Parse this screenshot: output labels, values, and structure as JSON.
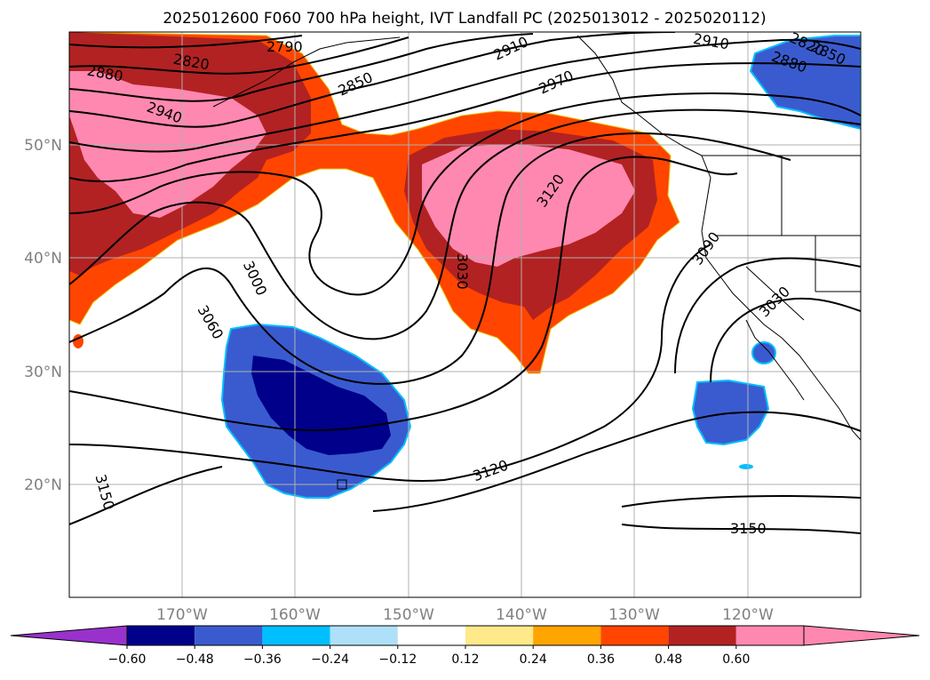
{
  "title": "2025012600 F060 700 hPa height, IVT Landfall PC (2025013012 - 2025020112)",
  "map": {
    "lon_range": [
      -180,
      -110
    ],
    "lat_range": [
      10,
      60
    ],
    "gridlines": true,
    "lon_labels": [
      "170°W",
      "160°W",
      "150°W",
      "140°W",
      "130°W",
      "120°W"
    ],
    "lat_labels": [
      "50°N",
      "40°N",
      "30°N",
      "20°N"
    ],
    "contour_labels": [
      "2790",
      "2820",
      "2880",
      "2940",
      "2850",
      "2910",
      "2970",
      "2910",
      "2880",
      "2850",
      "2820",
      "3000",
      "3060",
      "3030",
      "3120",
      "3090",
      "3030",
      "3120",
      "3150",
      "3150"
    ]
  },
  "colorbar": {
    "ticks": [
      "−0.60",
      "−0.48",
      "−0.36",
      "−0.24",
      "−0.12",
      "0.12",
      "0.24",
      "0.36",
      "0.48",
      "0.60"
    ],
    "under_color": "#9932cc",
    "over_color": "#ff88b0",
    "colors": [
      "#00008b",
      "#3a5bcf",
      "#00bfff",
      "#aee0fa",
      "#ffffff",
      "#ffe98a",
      "#ffa500",
      "#ff4500",
      "#b22222",
      "#ff88b0"
    ]
  },
  "chart_data": {
    "type": "heatmap",
    "variable": "IVT Landfall PC",
    "contour_variable": "700 hPa height",
    "contour_levels": [
      2790,
      2820,
      2850,
      2880,
      2910,
      2940,
      2970,
      3000,
      3030,
      3060,
      3090,
      3120,
      3150
    ],
    "color_levels": [
      -0.6,
      -0.48,
      -0.36,
      -0.24,
      -0.12,
      0.12,
      0.24,
      0.36,
      0.48,
      0.6
    ]
  }
}
